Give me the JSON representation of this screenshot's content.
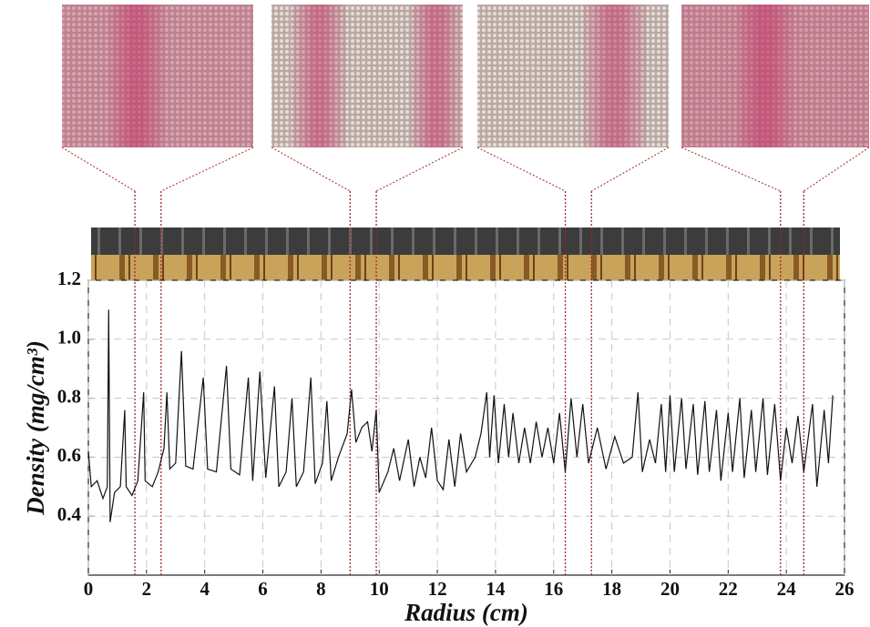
{
  "chart_data": {
    "type": "line",
    "xlabel": "Radius (cm)",
    "ylabel": "Density (mg/cm³)",
    "xlim": [
      0,
      26
    ],
    "ylim": [
      0.2,
      1.2
    ],
    "xticks": [
      0,
      2,
      4,
      6,
      8,
      10,
      12,
      14,
      16,
      18,
      20,
      22,
      24,
      26
    ],
    "yticks": [
      0.4,
      0.6,
      0.8,
      {
        "value": 1,
        "label": "1.0"
      },
      1.2
    ],
    "grid": true,
    "grid_style": "dashed",
    "color": "#111111",
    "highlight_color": "#a02828",
    "highlight_x": [
      1.6,
      2.5,
      9.0,
      9.9,
      16.4,
      17.3,
      23.8,
      24.6
    ],
    "x": [
      0,
      0.1,
      0.3,
      0.5,
      0.65,
      0.7,
      0.75,
      0.9,
      1.1,
      1.25,
      1.3,
      1.5,
      1.7,
      1.9,
      1.95,
      2.2,
      2.4,
      2.6,
      2.7,
      2.8,
      3.0,
      3.2,
      3.35,
      3.6,
      3.95,
      4.1,
      4.4,
      4.75,
      4.9,
      5.2,
      5.5,
      5.65,
      5.9,
      6.1,
      6.4,
      6.55,
      6.8,
      7.0,
      7.15,
      7.4,
      7.65,
      7.8,
      8.05,
      8.2,
      8.35,
      8.6,
      8.9,
      9.05,
      9.2,
      9.4,
      9.6,
      9.75,
      9.9,
      10.0,
      10.3,
      10.5,
      10.7,
      11.0,
      11.2,
      11.4,
      11.6,
      11.8,
      12.0,
      12.2,
      12.4,
      12.6,
      12.8,
      13.0,
      13.3,
      13.5,
      13.7,
      13.8,
      13.95,
      14.1,
      14.3,
      14.45,
      14.6,
      14.8,
      15.0,
      15.2,
      15.4,
      15.6,
      15.8,
      16.0,
      16.2,
      16.4,
      16.6,
      16.8,
      17.0,
      17.2,
      17.5,
      17.8,
      18.1,
      18.4,
      18.7,
      18.9,
      19.05,
      19.3,
      19.5,
      19.7,
      19.85,
      20.0,
      20.15,
      20.4,
      20.55,
      20.8,
      20.95,
      21.2,
      21.35,
      21.6,
      21.75,
      22.0,
      22.15,
      22.4,
      22.55,
      22.8,
      22.95,
      23.2,
      23.35,
      23.6,
      23.8,
      24.0,
      24.2,
      24.4,
      24.6,
      24.9,
      25.05,
      25.3,
      25.45,
      25.6
    ],
    "values": [
      0.62,
      0.5,
      0.52,
      0.46,
      0.5,
      1.1,
      0.38,
      0.48,
      0.5,
      0.76,
      0.5,
      0.47,
      0.52,
      0.82,
      0.52,
      0.5,
      0.55,
      0.63,
      0.82,
      0.56,
      0.58,
      0.96,
      0.57,
      0.56,
      0.87,
      0.56,
      0.55,
      0.91,
      0.56,
      0.54,
      0.87,
      0.52,
      0.89,
      0.53,
      0.84,
      0.5,
      0.55,
      0.8,
      0.5,
      0.55,
      0.87,
      0.51,
      0.58,
      0.79,
      0.52,
      0.6,
      0.68,
      0.83,
      0.65,
      0.7,
      0.72,
      0.62,
      0.76,
      0.48,
      0.55,
      0.63,
      0.52,
      0.66,
      0.5,
      0.6,
      0.53,
      0.7,
      0.52,
      0.49,
      0.66,
      0.5,
      0.68,
      0.55,
      0.6,
      0.68,
      0.82,
      0.6,
      0.81,
      0.58,
      0.78,
      0.6,
      0.75,
      0.58,
      0.7,
      0.58,
      0.72,
      0.6,
      0.7,
      0.58,
      0.75,
      0.55,
      0.8,
      0.6,
      0.78,
      0.58,
      0.7,
      0.56,
      0.67,
      0.58,
      0.6,
      0.82,
      0.55,
      0.66,
      0.58,
      0.78,
      0.55,
      0.81,
      0.55,
      0.8,
      0.56,
      0.78,
      0.54,
      0.79,
      0.55,
      0.76,
      0.52,
      0.75,
      0.55,
      0.8,
      0.53,
      0.76,
      0.55,
      0.8,
      0.54,
      0.78,
      0.52,
      0.7,
      0.58,
      0.74,
      0.55,
      0.78,
      0.5,
      0.76,
      0.58,
      0.81
    ]
  }
}
